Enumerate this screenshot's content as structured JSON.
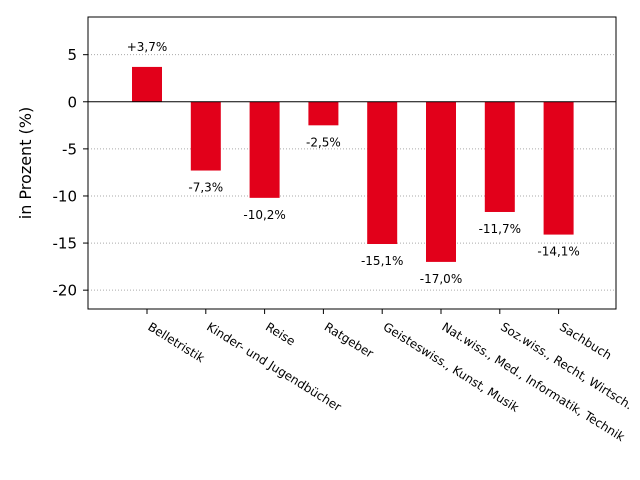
{
  "chart_data": {
    "type": "bar",
    "title": "",
    "xlabel": "",
    "ylabel": "in Prozent (%)",
    "ylim": [
      -22,
      9
    ],
    "yticks": [
      5,
      0,
      -5,
      -10,
      -15,
      -20
    ],
    "ytick_labels": [
      "5",
      "0",
      "-5",
      "-10",
      "-15",
      "-20"
    ],
    "grid": "horizontal-dotted",
    "bar_color": "#e2001a",
    "categories": [
      "Belletristik",
      "Kinder- und Jugendbücher",
      "Reise",
      "Ratgeber",
      "Geisteswiss., Kunst, Musik",
      "Nat.wiss., Med., Informatik, Technik",
      "Soz.wiss., Recht, Wirtsch.",
      "Sachbuch"
    ],
    "values": [
      3.7,
      -7.3,
      -10.2,
      -2.5,
      -15.1,
      -17.0,
      -11.7,
      -14.1
    ],
    "data_labels": [
      "+3,7%",
      "-7,3%",
      "-10,2%",
      "-2,5%",
      "-15,1%",
      "-17,0%",
      "-11,7%",
      "-14,1%"
    ]
  }
}
